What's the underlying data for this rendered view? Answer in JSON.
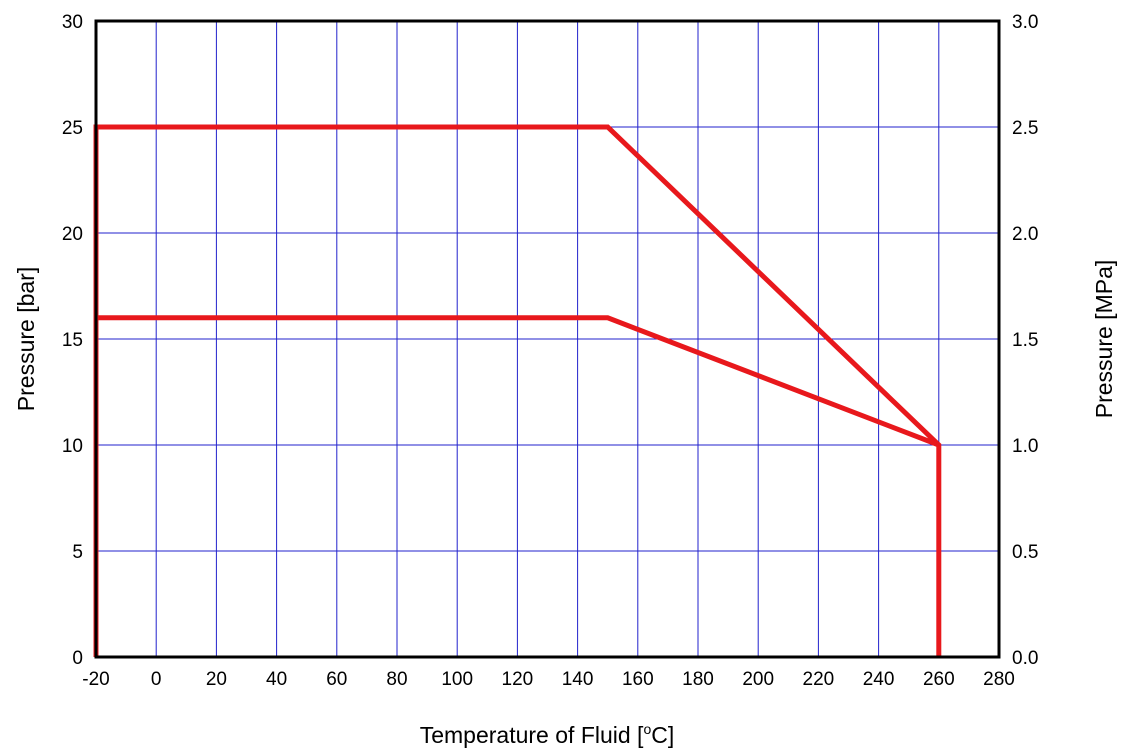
{
  "chart_data": {
    "type": "line",
    "title": "",
    "xlabel": "Temperature of Fluid [°C]",
    "xlabel_parts": {
      "before": "Temperature of Fluid [",
      "sup": "o",
      "after": "C]"
    },
    "ylabel": "Pressure [bar]",
    "y2label": "Pressure [MPa]",
    "xlim": [
      -20,
      280
    ],
    "ylim": [
      0,
      30
    ],
    "y2lim": [
      0.0,
      3.0
    ],
    "x_ticks": [
      "-20",
      "0",
      "20",
      "40",
      "60",
      "80",
      "100",
      "120",
      "140",
      "160",
      "180",
      "200",
      "220",
      "240",
      "260",
      "280"
    ],
    "y_ticks": [
      "0",
      "5",
      "10",
      "15",
      "20",
      "25",
      "30"
    ],
    "y2_ticks": [
      "0.0",
      "0.5",
      "1.0",
      "1.5",
      "2.0",
      "2.5",
      "3.0"
    ],
    "grid": true,
    "grid_color": "#2222cc",
    "line_color": "#e8181c",
    "series": [
      {
        "x": [
          -20,
          -20,
          150,
          260,
          260
        ],
        "y": [
          0,
          25,
          25,
          10,
          0
        ]
      },
      {
        "x": [
          -20,
          150,
          260
        ],
        "y": [
          16,
          16,
          10
        ]
      }
    ]
  }
}
